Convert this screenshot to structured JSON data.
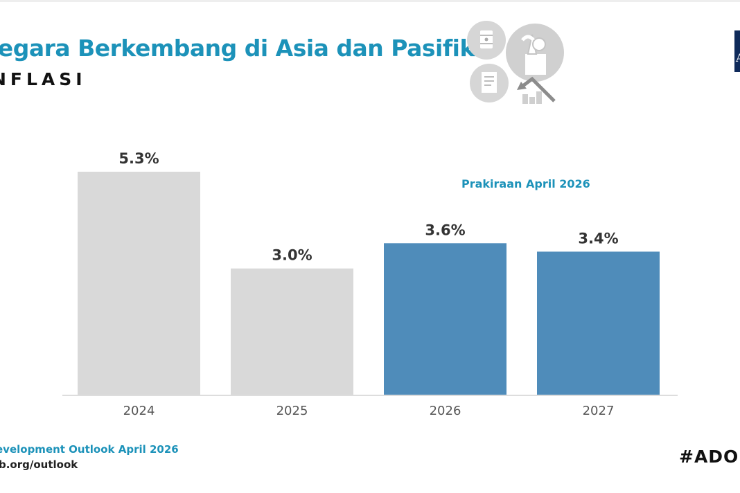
{
  "header": {
    "title": "legara Berkembang di Asia dan Pasifik",
    "subtitle": "NFLASI"
  },
  "illustration": {
    "icons": [
      "oil-barrel-icon",
      "grocery-bag-icon",
      "receipt-icon",
      "rising-price-icon"
    ]
  },
  "annotation": "Prakiraan April 2026",
  "footer": {
    "source": "evelopment Outlook April 2026",
    "url": "b.org/outlook",
    "hashtag": "#ADO"
  },
  "colors": {
    "accent": "#1c92b9",
    "actual_bar": "#d9d9d9",
    "forecast_bar": "#4f8cba",
    "logo": "#0f2a5a"
  },
  "chart_data": {
    "type": "bar",
    "title": "",
    "xlabel": "",
    "ylabel": "",
    "categories": [
      "2024",
      "2025",
      "2026",
      "2027"
    ],
    "values": [
      5.3,
      3.0,
      3.6,
      3.4
    ],
    "value_labels": [
      "5.3%",
      "3.0%",
      "3.6%",
      "3.4%"
    ],
    "forecast": [
      false,
      false,
      true,
      true
    ],
    "ylim": [
      0,
      5.3
    ],
    "grid": false,
    "legend": "none"
  }
}
